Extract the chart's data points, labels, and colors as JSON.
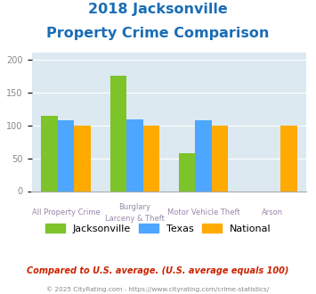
{
  "title_line1": "2018 Jacksonville",
  "title_line2": "Property Crime Comparison",
  "cat_labels_line1": [
    "All Property Crime",
    "Burglary",
    "Motor Vehicle Theft",
    "Arson"
  ],
  "cat_labels_line2": [
    "",
    "Larceny & Theft",
    "",
    ""
  ],
  "jacksonville": [
    115,
    175,
    57,
    null
  ],
  "texas": [
    107,
    109,
    107,
    null
  ],
  "national": [
    100,
    100,
    100,
    100
  ],
  "bar_color_jacksonville": "#7dc42a",
  "bar_color_texas": "#4da6ff",
  "bar_color_national": "#ffaa00",
  "ylim": [
    0,
    210
  ],
  "yticks": [
    0,
    50,
    100,
    150,
    200
  ],
  "title_color": "#1a6db5",
  "title_fontsize": 11.5,
  "background_color": "#dce9f0",
  "legend_labels": [
    "Jacksonville",
    "Texas",
    "National"
  ],
  "footer_text": "Compared to U.S. average. (U.S. average equals 100)",
  "footer_color": "#cc2200",
  "copyright_text": "© 2025 CityRating.com - https://www.cityrating.com/crime-statistics/",
  "copyright_color": "#888888",
  "xlabel_color": "#9988aa",
  "ytick_color": "#888888"
}
